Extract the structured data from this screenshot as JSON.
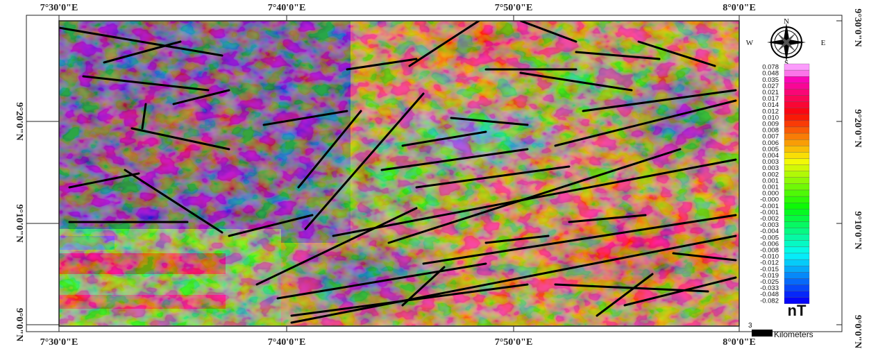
{
  "map": {
    "top_labels": [
      "7°30'0\"E",
      "7°40'0\"E",
      "7°50'0\"E",
      "8°0'0\"E"
    ],
    "bottom_labels": [
      "7°30'0\"E",
      "7°40'0\"E",
      "7°50'0\"E",
      "8°0'0\"E"
    ],
    "left_labels": [
      "9°20'0\"N",
      "9°10'0\"N",
      "9°0'0\"N"
    ],
    "right_labels": [
      "9°30'0\"N",
      "9°20'0\"N",
      "9°10'0\"N",
      "9°0'0\"N"
    ],
    "compass": {
      "north": "N",
      "south": "S",
      "east": "E",
      "west": "W"
    },
    "legend": {
      "labels": [
        "0.078",
        "0.048",
        "0.035",
        "0.027",
        "0.021",
        "0.017",
        "0.014",
        "0.012",
        "0.010",
        "0.009",
        "0.008",
        "0.007",
        "0.006",
        "0.005",
        "0.004",
        "0.003",
        "0.003",
        "0.002",
        "0.001",
        "0.001",
        "0.000",
        "-0.000",
        "-0.001",
        "-0.001",
        "-0.002",
        "-0.003",
        "-0.004",
        "-0.005",
        "-0.006",
        "-0.008",
        "-0.010",
        "-0.012",
        "-0.015",
        "-0.019",
        "-0.025",
        "-0.033",
        "-0.048",
        "-0.082"
      ],
      "unit": "nT"
    },
    "scale_bar": {
      "value": "3",
      "unit": "Kilometers"
    }
  }
}
